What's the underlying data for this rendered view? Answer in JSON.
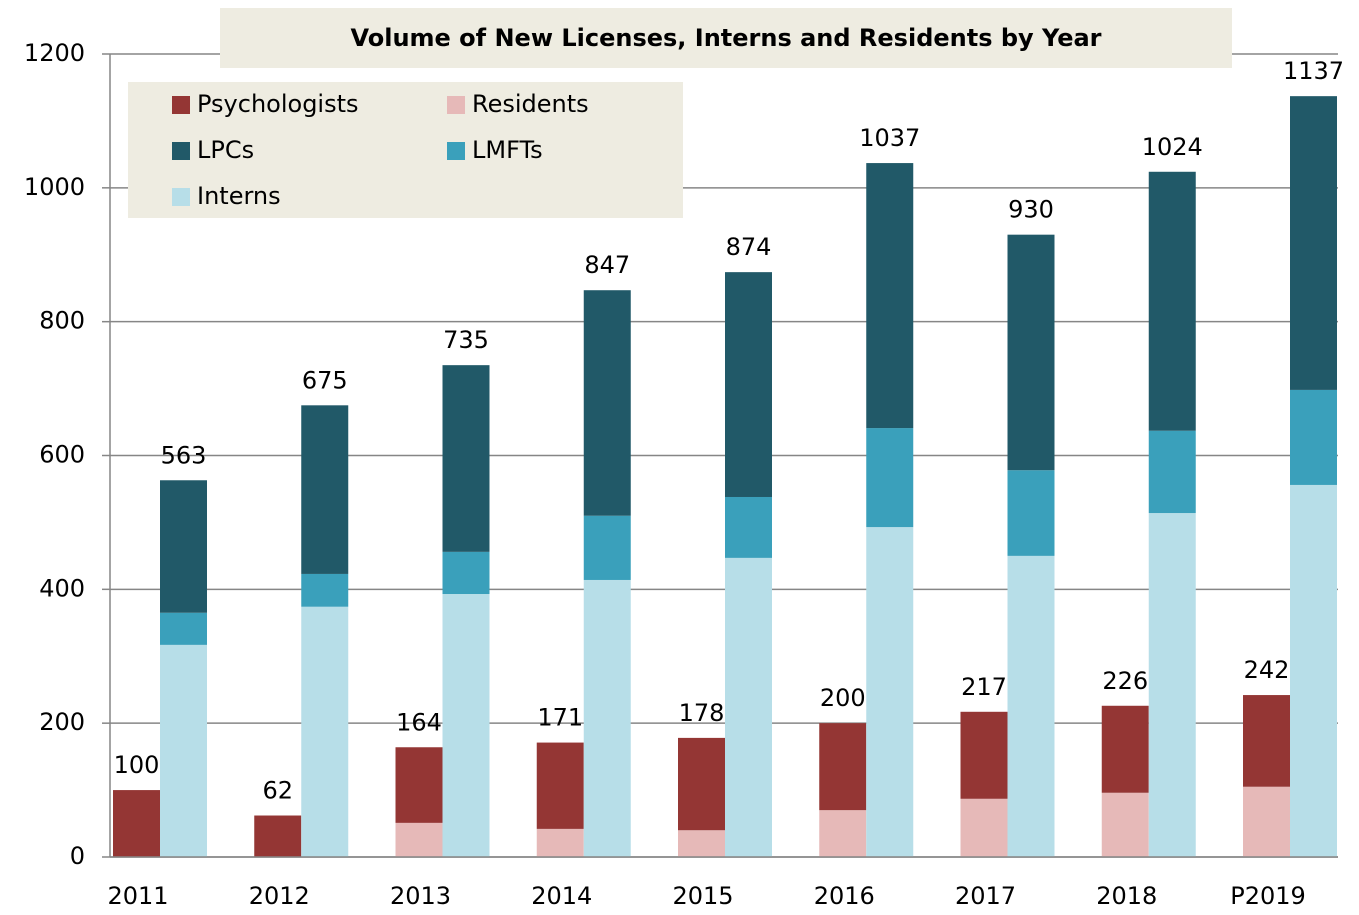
{
  "chart_data": {
    "type": "stacked_grouped_bar",
    "title": "Volume of New Licenses, Interns and Residents by Year",
    "categories": [
      "2011",
      "2012",
      "2013",
      "2014",
      "2015",
      "2016",
      "2017",
      "2018",
      "P2019"
    ],
    "series": [
      {
        "name": "Psychologists",
        "color": "#943634",
        "stack": "left",
        "values": [
          100,
          62,
          113,
          129,
          138,
          130,
          130,
          130,
          137
        ]
      },
      {
        "name": "Residents",
        "color": "#e6b9b8",
        "stack": "left",
        "values": [
          0,
          0,
          51,
          42,
          40,
          70,
          87,
          96,
          105
        ]
      },
      {
        "name": "LPCs",
        "color": "#215968",
        "stack": "right",
        "values": [
          198,
          252,
          279,
          337,
          336,
          396,
          352,
          387,
          439
        ]
      },
      {
        "name": "LMFTs",
        "color": "#3aa0bb",
        "stack": "right",
        "values": [
          48,
          49,
          63,
          96,
          91,
          148,
          128,
          123,
          142
        ]
      },
      {
        "name": "Interns",
        "color": "#b7dee8",
        "stack": "right",
        "values": [
          317,
          374,
          393,
          414,
          447,
          493,
          450,
          514,
          556
        ]
      }
    ],
    "stack_order": {
      "left": [
        "Residents",
        "Psychologists"
      ],
      "right": [
        "Interns",
        "LMFTs",
        "LPCs"
      ]
    },
    "totals": {
      "left": [
        100,
        62,
        164,
        171,
        178,
        200,
        217,
        226,
        242
      ],
      "right": [
        563,
        675,
        735,
        847,
        874,
        1037,
        930,
        1024,
        1137
      ]
    },
    "ylim": [
      0,
      1200
    ],
    "yticks": [
      0,
      200,
      400,
      600,
      800,
      1000,
      1200
    ],
    "grid": true,
    "legend": "upper left"
  }
}
